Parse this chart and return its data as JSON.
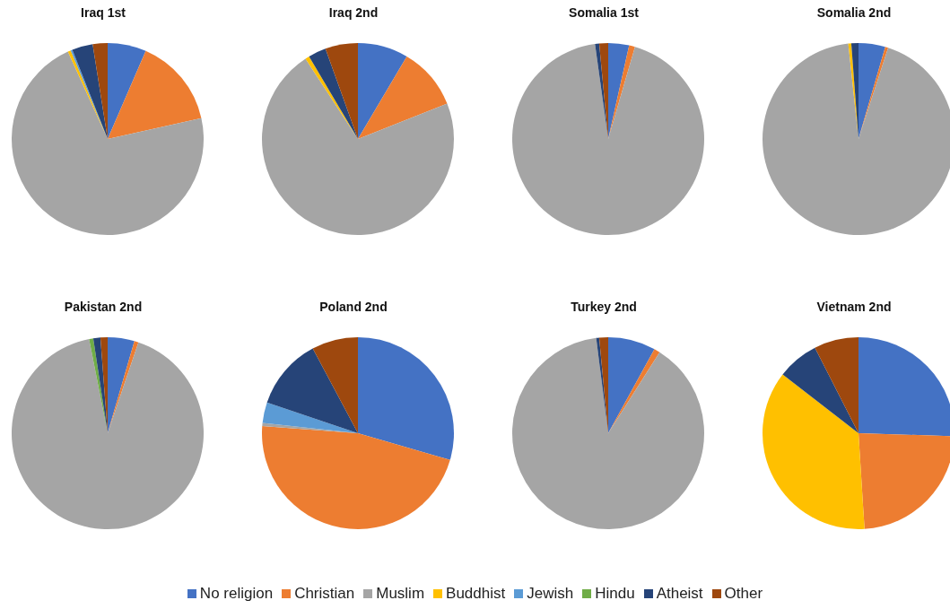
{
  "chart_data": [
    {
      "type": "pie",
      "title": "Iraq 1st",
      "categories": [
        "No religion",
        "Christian",
        "Muslim",
        "Buddhist",
        "Jewish",
        "Hindu",
        "Atheist",
        "Other"
      ],
      "values": [
        6.5,
        15,
        71.7,
        0.5,
        0.3,
        0,
        3.5,
        2.5
      ],
      "colors": [
        "#4472c4",
        "#ed7d31",
        "#a5a5a5",
        "#ffc000",
        "#5b9bd5",
        "#70ad47",
        "#264478",
        "#9e480e"
      ],
      "legend": "bottom"
    },
    {
      "type": "pie",
      "title": "Iraq 2nd",
      "values": [
        8.5,
        10.5,
        71.8,
        0.7,
        0,
        0,
        3,
        5.5
      ],
      "colors": [
        "#4472c4",
        "#ed7d31",
        "#a5a5a5",
        "#ffc000",
        "#5b9bd5",
        "#70ad47",
        "#264478",
        "#9e480e"
      ]
    },
    {
      "type": "pie",
      "title": "Somalia 1st",
      "values": [
        3.5,
        1,
        93.3,
        0,
        0,
        0,
        0.7,
        1.5
      ],
      "colors": [
        "#4472c4",
        "#ed7d31",
        "#a5a5a5",
        "#ffc000",
        "#5b9bd5",
        "#70ad47",
        "#264478",
        "#9e480e"
      ]
    },
    {
      "type": "pie",
      "title": "Somalia 2nd",
      "values": [
        4.5,
        0.5,
        93.3,
        0.5,
        0,
        0,
        1.2,
        0
      ],
      "colors": [
        "#4472c4",
        "#ed7d31",
        "#a5a5a5",
        "#ffc000",
        "#5b9bd5",
        "#70ad47",
        "#264478",
        "#9e480e"
      ]
    },
    {
      "type": "pie",
      "title": "Pakistan 2nd",
      "values": [
        4.5,
        0.7,
        91.7,
        0,
        0,
        0.7,
        1.2,
        1.2
      ],
      "colors": [
        "#4472c4",
        "#ed7d31",
        "#a5a5a5",
        "#ffc000",
        "#5b9bd5",
        "#70ad47",
        "#264478",
        "#9e480e"
      ]
    },
    {
      "type": "pie",
      "title": "Poland 2nd",
      "values": [
        29.5,
        46.7,
        0.5,
        0,
        3.5,
        0,
        12,
        7.8
      ],
      "colors": [
        "#4472c4",
        "#ed7d31",
        "#a5a5a5",
        "#ffc000",
        "#5b9bd5",
        "#70ad47",
        "#264478",
        "#9e480e"
      ]
    },
    {
      "type": "pie",
      "title": "Turkey 2nd",
      "values": [
        8,
        1,
        89,
        0,
        0,
        0,
        0.5,
        1.5
      ],
      "colors": [
        "#4472c4",
        "#ed7d31",
        "#a5a5a5",
        "#ffc000",
        "#5b9bd5",
        "#70ad47",
        "#264478",
        "#9e480e"
      ]
    },
    {
      "type": "pie",
      "title": "Vietnam 2nd",
      "values": [
        25.5,
        23.5,
        0,
        36.5,
        0,
        0,
        7,
        7.5
      ],
      "colors": [
        "#4472c4",
        "#ed7d31",
        "#a5a5a5",
        "#ffc000",
        "#5b9bd5",
        "#70ad47",
        "#264478",
        "#9e480e"
      ]
    }
  ]
}
